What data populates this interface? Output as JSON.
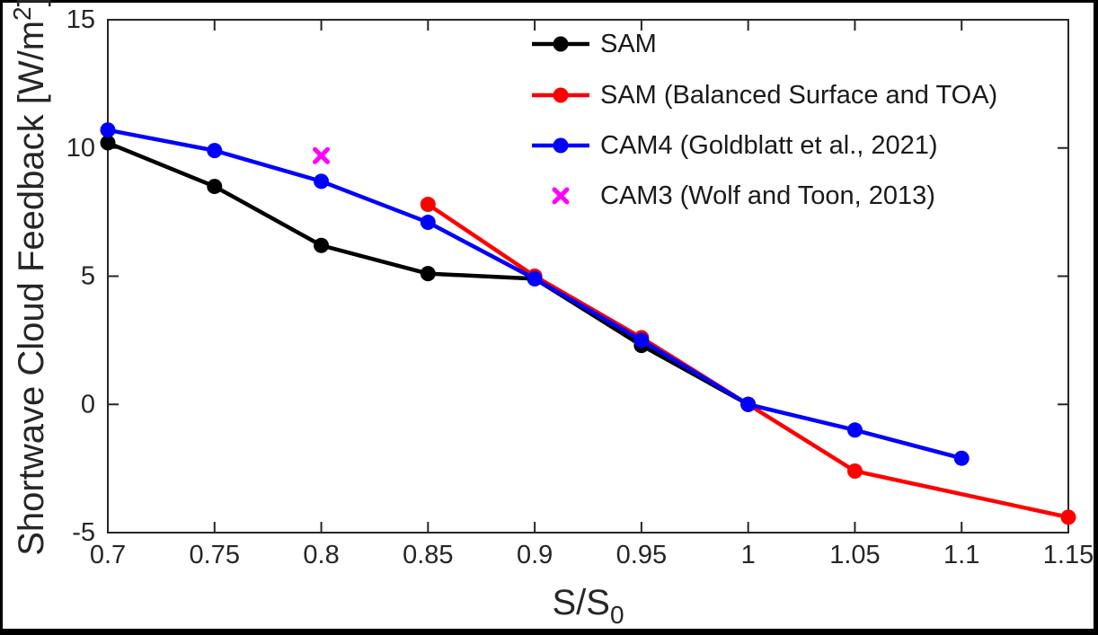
{
  "figure": {
    "background": "#ffffff",
    "border_color": "#000000",
    "axes_color": "#262626",
    "text_color": "#1a1a1a",
    "ylabel_parts": {
      "text": "Shortwave Cloud Feedback [W/m",
      "superscript": "2",
      "suffix": "]"
    },
    "xlabel_parts": {
      "text": "S/S",
      "subscript": "0"
    }
  },
  "chart_data": {
    "type": "line",
    "title": "",
    "xlabel": "S/S_0",
    "ylabel": "Shortwave Cloud Feedback [W/m^2]",
    "xlim": [
      0.7,
      1.15
    ],
    "ylim": [
      -5,
      15
    ],
    "grid": false,
    "box": true,
    "ticks_direction": "in",
    "legend_position": "top-right",
    "legend_frame": false,
    "x_ticks": [
      0.7,
      0.75,
      0.8,
      0.85,
      0.9,
      0.95,
      1.0,
      1.05,
      1.1,
      1.15
    ],
    "x_tick_labels": [
      "0.7",
      "0.75",
      "0.8",
      "0.85",
      "0.9",
      "0.95",
      "1",
      "1.05",
      "1.1",
      "1.15"
    ],
    "y_ticks": [
      -5,
      0,
      5,
      10,
      15
    ],
    "y_tick_labels": [
      "-5",
      "0",
      "5",
      "10",
      "15"
    ],
    "series": [
      {
        "name": "SAM",
        "color": "#000000",
        "marker": "circle",
        "line": true,
        "x": [
          0.7,
          0.75,
          0.8,
          0.85,
          0.9,
          0.95,
          1.0
        ],
        "y": [
          10.2,
          8.5,
          6.2,
          5.1,
          4.9,
          2.3,
          0.0
        ]
      },
      {
        "name": "SAM (Balanced Surface and TOA)",
        "color": "#ff0000",
        "marker": "circle",
        "line": true,
        "x": [
          0.85,
          0.9,
          0.95,
          1.0,
          1.05,
          1.15
        ],
        "y": [
          7.8,
          5.0,
          2.6,
          0.0,
          -2.6,
          -4.4
        ]
      },
      {
        "name": "CAM4 (Goldblatt et al., 2021)",
        "color": "#0000ff",
        "marker": "circle",
        "line": true,
        "x": [
          0.7,
          0.75,
          0.8,
          0.85,
          0.9,
          0.95,
          1.0,
          1.05,
          1.1
        ],
        "y": [
          10.7,
          9.9,
          8.7,
          7.1,
          4.9,
          2.5,
          0.0,
          -1.0,
          -2.1
        ]
      },
      {
        "name": "CAM3 (Wolf and Toon, 2013)",
        "color": "#ff00ff",
        "marker": "x",
        "line": false,
        "x": [
          0.8
        ],
        "y": [
          9.7
        ]
      }
    ]
  }
}
